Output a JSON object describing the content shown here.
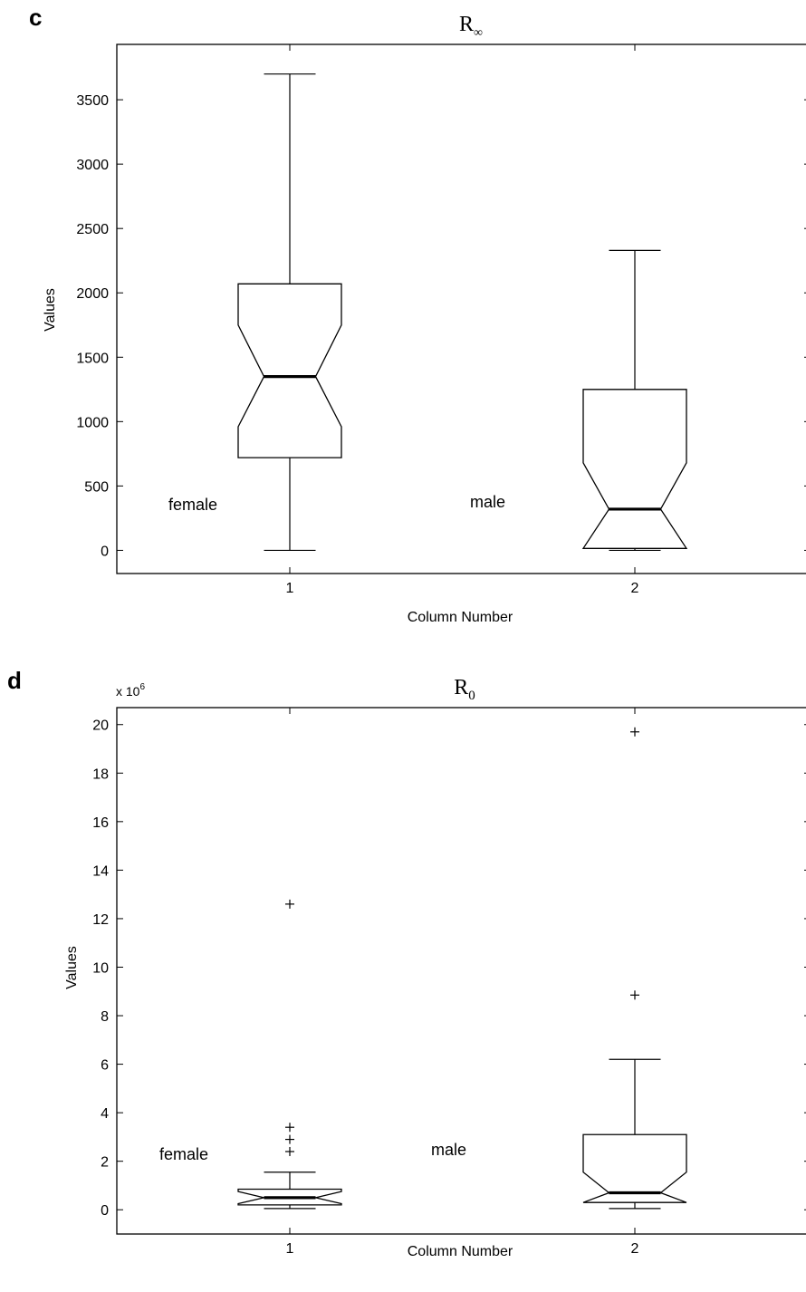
{
  "chart_data": [
    {
      "type": "boxplot",
      "panel_label": "c",
      "title": "R",
      "title_subscript": "∞",
      "xlabel": "Column Number",
      "ylabel": "Values",
      "ylim": [
        -180,
        3930
      ],
      "yticks": [
        0,
        500,
        1000,
        1500,
        2000,
        2500,
        3000,
        3500
      ],
      "ytick_labels": [
        "0",
        "500",
        "1000",
        "1500",
        "2000",
        "2500",
        "3000",
        "3500"
      ],
      "categories": [
        "1",
        "2"
      ],
      "notched": true,
      "boxes": [
        {
          "label": "female",
          "lower_whisker": 0,
          "q1": 720,
          "notch_low": 960,
          "median": 1350,
          "notch_high": 1750,
          "q3": 2070,
          "upper_whisker": 3700,
          "outliers": []
        },
        {
          "label": "male",
          "lower_whisker": 0,
          "q1": 15,
          "notch_low": 15,
          "median": 320,
          "notch_high": 680,
          "q3": 1250,
          "upper_whisker": 2330,
          "outliers": []
        }
      ]
    },
    {
      "type": "boxplot",
      "panel_label": "d",
      "title": "R",
      "title_subscript": "0",
      "exponent_label": "x 10",
      "exponent_power": "6",
      "xlabel": "Column Number",
      "ylabel": "Values",
      "ylim": [
        -1.0,
        20.7
      ],
      "yticks": [
        0,
        2,
        4,
        6,
        8,
        10,
        12,
        14,
        16,
        18,
        20
      ],
      "ytick_labels": [
        "0",
        "2",
        "4",
        "6",
        "8",
        "10",
        "12",
        "14",
        "16",
        "18",
        "20"
      ],
      "categories": [
        "1",
        "2"
      ],
      "notched": true,
      "boxes": [
        {
          "label": "female",
          "lower_whisker": 0.05,
          "q1": 0.2,
          "notch_low": 0.25,
          "median": 0.5,
          "notch_high": 0.75,
          "q3": 0.85,
          "upper_whisker": 1.55,
          "outliers": [
            2.4,
            2.9,
            3.4,
            12.6
          ]
        },
        {
          "label": "male",
          "lower_whisker": 0.05,
          "q1": 0.3,
          "notch_low": 0.3,
          "median": 0.7,
          "notch_high": 1.55,
          "q3": 3.1,
          "upper_whisker": 6.2,
          "outliers": [
            8.85,
            19.7
          ]
        }
      ]
    }
  ]
}
